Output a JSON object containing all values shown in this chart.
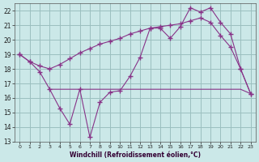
{
  "xlabel": "Windchill (Refroidissement éolien,°C)",
  "bg_color": "#cbe8e8",
  "grid_color": "#9bbfbf",
  "line_color": "#883388",
  "x_ticks": [
    0,
    1,
    2,
    3,
    4,
    5,
    6,
    7,
    8,
    9,
    10,
    11,
    12,
    13,
    14,
    15,
    16,
    17,
    18,
    19,
    20,
    21,
    22,
    23
  ],
  "ylim": [
    13,
    22.5
  ],
  "xlim": [
    -0.5,
    23.5
  ],
  "yticks": [
    13,
    14,
    15,
    16,
    17,
    18,
    19,
    20,
    21,
    22
  ],
  "series_smooth_x": [
    0,
    1,
    2,
    3,
    4,
    5,
    6,
    7,
    8,
    9,
    10,
    11,
    12,
    13,
    14,
    15,
    16,
    17,
    18,
    19,
    20,
    21,
    22,
    23
  ],
  "series_smooth_y": [
    19.0,
    18.5,
    18.2,
    18.0,
    18.3,
    18.7,
    19.1,
    19.4,
    19.7,
    19.9,
    20.1,
    20.4,
    20.6,
    20.8,
    20.9,
    21.0,
    21.1,
    21.3,
    21.5,
    21.2,
    20.3,
    19.5,
    18.0,
    16.3
  ],
  "series_jagged_x": [
    0,
    1,
    2,
    3,
    4,
    5,
    6,
    7,
    8,
    9,
    10,
    11,
    12,
    13,
    14,
    15,
    16,
    17,
    18,
    19,
    20,
    21,
    22,
    23
  ],
  "series_jagged_y": [
    19.0,
    18.5,
    17.8,
    16.6,
    15.3,
    14.2,
    16.6,
    13.3,
    15.7,
    16.4,
    16.5,
    17.5,
    18.8,
    20.8,
    20.8,
    20.1,
    20.9,
    22.2,
    21.9,
    22.2,
    21.2,
    20.4,
    18.0,
    16.3
  ],
  "series_flat_x": [
    3,
    4,
    5,
    6,
    7,
    8,
    9,
    10,
    11,
    12,
    13,
    14,
    15,
    16,
    17,
    18,
    19,
    20,
    21,
    22,
    23
  ],
  "series_flat_y": [
    16.6,
    16.6,
    16.6,
    16.6,
    16.6,
    16.6,
    16.6,
    16.6,
    16.6,
    16.6,
    16.6,
    16.6,
    16.6,
    16.6,
    16.6,
    16.6,
    16.6,
    16.6,
    16.6,
    16.6,
    16.3
  ]
}
